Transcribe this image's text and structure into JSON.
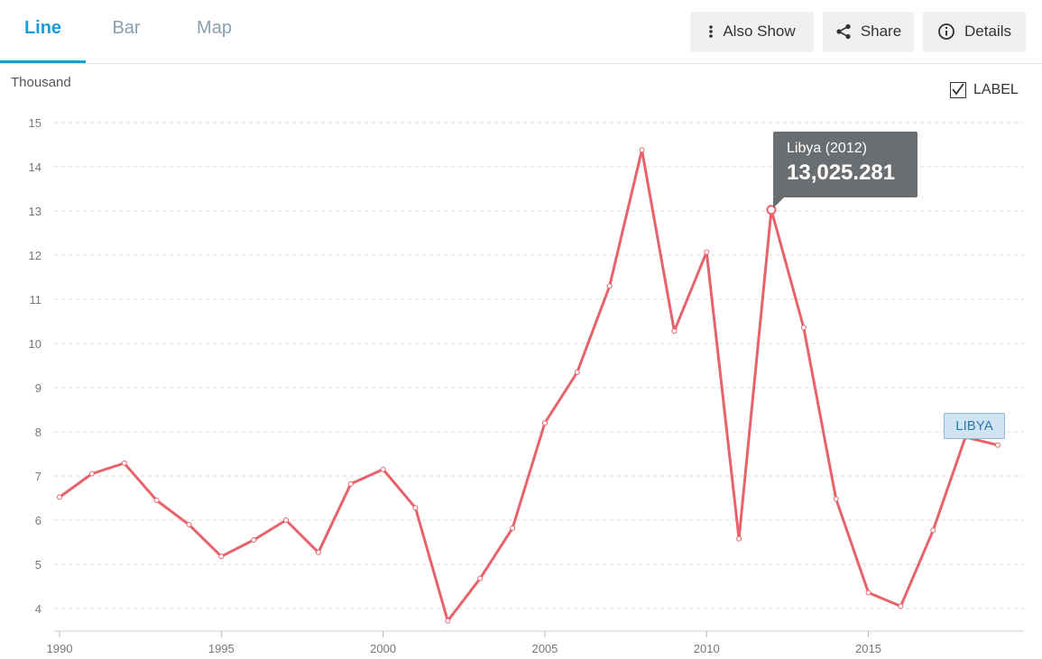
{
  "tabs": [
    {
      "label": "Line",
      "active": true
    },
    {
      "label": "Bar",
      "active": false
    },
    {
      "label": "Map",
      "active": false
    }
  ],
  "toolbar": {
    "also_show_label": "Also Show",
    "share_label": "Share",
    "details_label": "Details"
  },
  "unit_label": "Thousand",
  "label_toggle": {
    "text": "LABEL",
    "checked": true
  },
  "tooltip": {
    "title": "Libya (2012)",
    "value": "13,025.281"
  },
  "series_tag": "LIBYA",
  "colors": {
    "accent": "#1e9bd7",
    "line": "#e8626c",
    "grid": "#d9d9d9"
  },
  "chart_data": {
    "type": "line",
    "xlabel": "",
    "ylabel": "Thousand",
    "ylim": [
      4,
      15
    ],
    "y_ticks": [
      4,
      5,
      6,
      7,
      8,
      9,
      10,
      11,
      12,
      13,
      14,
      15
    ],
    "x_ticks": [
      1990,
      1995,
      2000,
      2005,
      2010,
      2015
    ],
    "grid": true,
    "series": [
      {
        "name": "LIBYA",
        "x": [
          1990,
          1991,
          1992,
          1993,
          1994,
          1995,
          1996,
          1997,
          1998,
          1999,
          2000,
          2001,
          2002,
          2003,
          2004,
          2005,
          2006,
          2007,
          2008,
          2009,
          2010,
          2011,
          2012,
          2013,
          2014,
          2015,
          2016,
          2017,
          2018,
          2019
        ],
        "y": [
          6.52,
          7.05,
          7.29,
          6.45,
          5.9,
          5.18,
          5.55,
          6.0,
          5.27,
          6.82,
          7.15,
          6.28,
          3.72,
          4.68,
          5.82,
          8.2,
          9.35,
          11.3,
          14.38,
          10.28,
          12.07,
          5.58,
          13.025,
          10.36,
          6.48,
          4.36,
          4.05,
          5.77,
          7.88,
          7.7
        ]
      }
    ],
    "highlight": {
      "x": 2012,
      "y": 13.025
    }
  }
}
